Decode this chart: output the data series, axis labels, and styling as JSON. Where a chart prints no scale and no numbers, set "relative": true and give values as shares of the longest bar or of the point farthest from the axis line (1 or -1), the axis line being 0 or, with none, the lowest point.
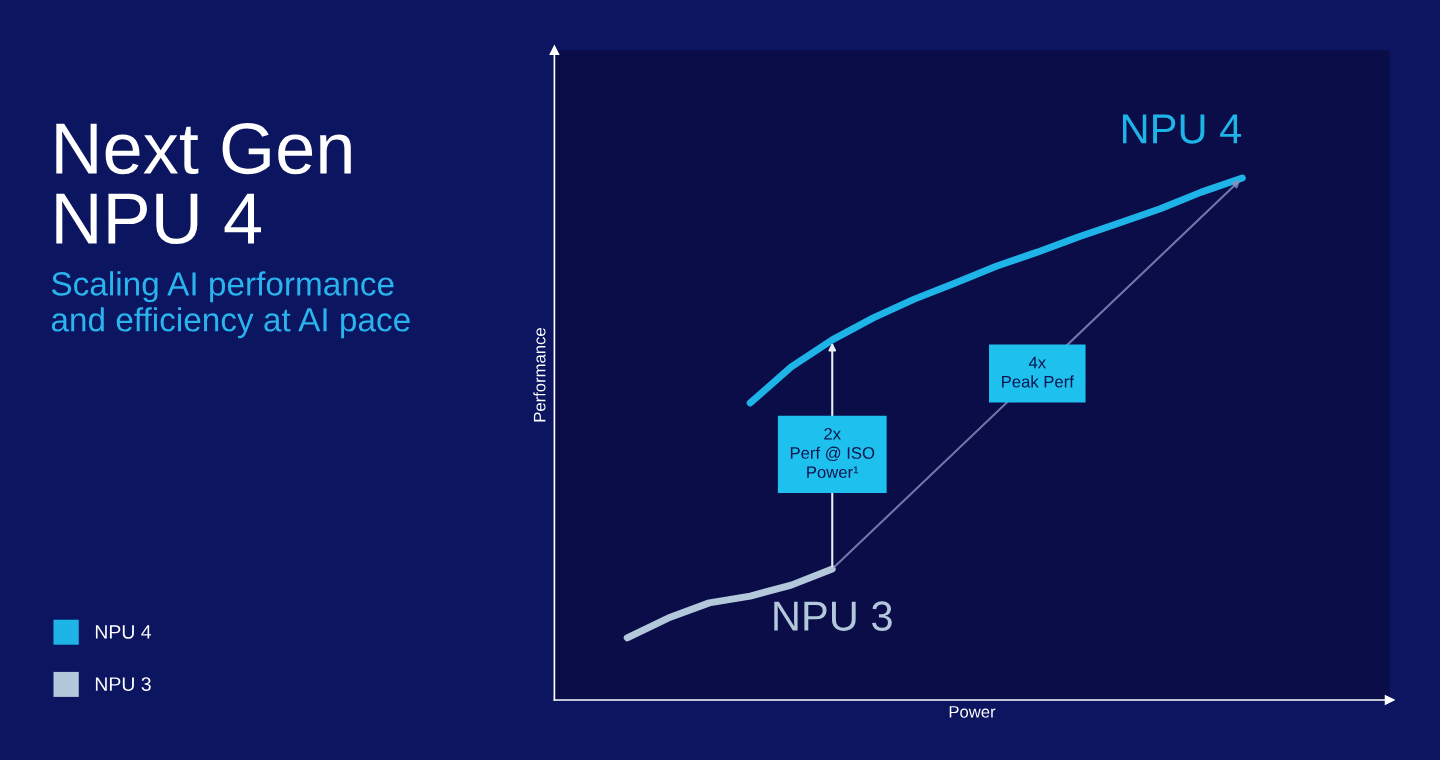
{
  "chart_data": {
    "type": "line",
    "title": "Next Gen\nNPU 4",
    "subtitle": "Scaling AI performance\nand efficiency at AI pace",
    "xlabel": "Power",
    "ylabel": "Performance",
    "relative": true,
    "legend": "bottom left",
    "marker": "none",
    "line_style": "solid",
    "categories": [
      null,
      null,
      null,
      null,
      null,
      null,
      null,
      null,
      null,
      null,
      null,
      null,
      null,
      null,
      null,
      null
    ],
    "series": [
      {
        "name": "NPU 4",
        "color": "#1eb4e8",
        "values": [
          null,
          null,
          null,
          0.569,
          0.638,
          0.69,
          0.732,
          0.768,
          0.799,
          0.831,
          0.858,
          0.887,
          0.914,
          0.941,
          0.973,
          1
        ]
      },
      {
        "name": "NPU 3",
        "color": "#b4c8dc",
        "values": [
          0.119,
          0.157,
          0.186,
          0.199,
          0.22,
          0.251,
          null,
          null,
          null,
          null,
          null,
          null,
          null,
          null,
          null,
          null
        ]
      }
    ],
    "annotations": [
      "2x\nPerf @ ISO\nPower¹",
      "4x\nPeak Perf"
    ]
  }
}
